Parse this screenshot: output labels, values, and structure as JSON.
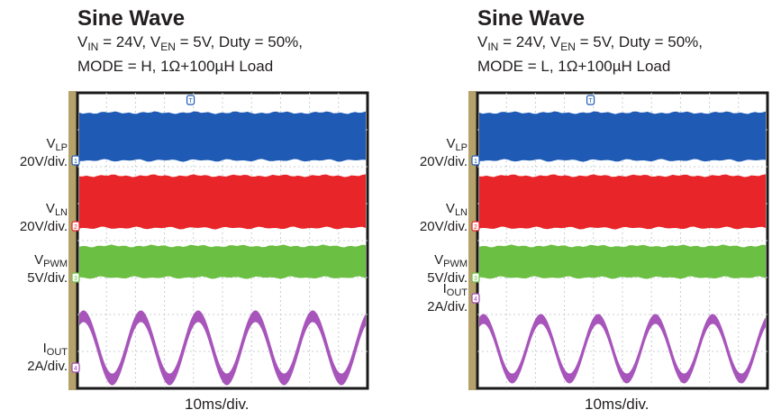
{
  "chart_data": [
    {
      "type": "line",
      "title": "Sine Wave",
      "subtitle_line1": {
        "v_in": "IN",
        "v_in_value": " = 24V, V",
        "v_en": "EN",
        "v_en_value": " = 5V, Duty = 50%,"
      },
      "subtitle_line2": "MODE = H, 1Ω+100µH Load",
      "xlabel": "10ms/div.",
      "series": [
        {
          "name": "VLP",
          "label_main": "V",
          "label_sub": "LP",
          "scale": "20V/div.",
          "marker": "1",
          "color": "#1f5bb5",
          "kind": "band",
          "y_range": [
            -1.0,
            1.0
          ]
        },
        {
          "name": "VLN",
          "label_main": "V",
          "label_sub": "LN",
          "scale": "20V/div.",
          "marker": "2",
          "color": "#e8262a",
          "kind": "band",
          "y_range": [
            -1.0,
            1.0
          ]
        },
        {
          "name": "VPWM",
          "label_main": "V",
          "label_sub": "PWM",
          "scale": "5V/div.",
          "marker": "3",
          "color": "#6bbf42",
          "kind": "band",
          "y_range": [
            -1.0,
            1.0
          ]
        },
        {
          "name": "IOUT",
          "label_main": "I",
          "label_sub": "OUT",
          "scale": "2A/div.",
          "marker": "4",
          "color": "#a046b5",
          "kind": "sine",
          "period_ms": 10,
          "cycles_shown": 5
        }
      ],
      "trigger_marker": "T",
      "grid": true,
      "x_divisions": 10,
      "y_divisions": 8
    },
    {
      "type": "line",
      "title": "Sine Wave",
      "subtitle_line1": {
        "v_in": "IN",
        "v_in_value": " = 24V, V",
        "v_en": "EN",
        "v_en_value": " = 5V, Duty = 50%,"
      },
      "subtitle_line2": "MODE = L, 1Ω+100µH Load",
      "xlabel": "10ms/div.",
      "series": [
        {
          "name": "VLP",
          "label_main": "V",
          "label_sub": "LP",
          "scale": "20V/div.",
          "marker": "1",
          "color": "#1f5bb5",
          "kind": "band",
          "y_range": [
            -1.0,
            1.0
          ]
        },
        {
          "name": "VLN",
          "label_main": "V",
          "label_sub": "LN",
          "scale": "20V/div.",
          "marker": "2",
          "color": "#e8262a",
          "kind": "band",
          "y_range": [
            -1.0,
            1.0
          ]
        },
        {
          "name": "VPWM",
          "label_main": "V",
          "label_sub": "PWM",
          "scale": "5V/div.",
          "marker": "3",
          "color": "#6bbf42",
          "kind": "band",
          "y_range": [
            -1.0,
            1.0
          ]
        },
        {
          "name": "IOUT",
          "label_main": "I",
          "label_sub": "OUT",
          "scale": "2A/div.",
          "marker": "4",
          "color": "#a046b5",
          "kind": "sine",
          "period_ms": 10,
          "cycles_shown": 5
        }
      ],
      "trigger_marker": "T",
      "grid": true,
      "x_divisions": 10,
      "y_divisions": 8
    }
  ],
  "colors": {
    "scope_background": "#ffffff",
    "scope_frame": "#1a1a1a",
    "grid": "#c8ccd2",
    "side_bar": "#b5a26b",
    "text": "#231f20"
  }
}
